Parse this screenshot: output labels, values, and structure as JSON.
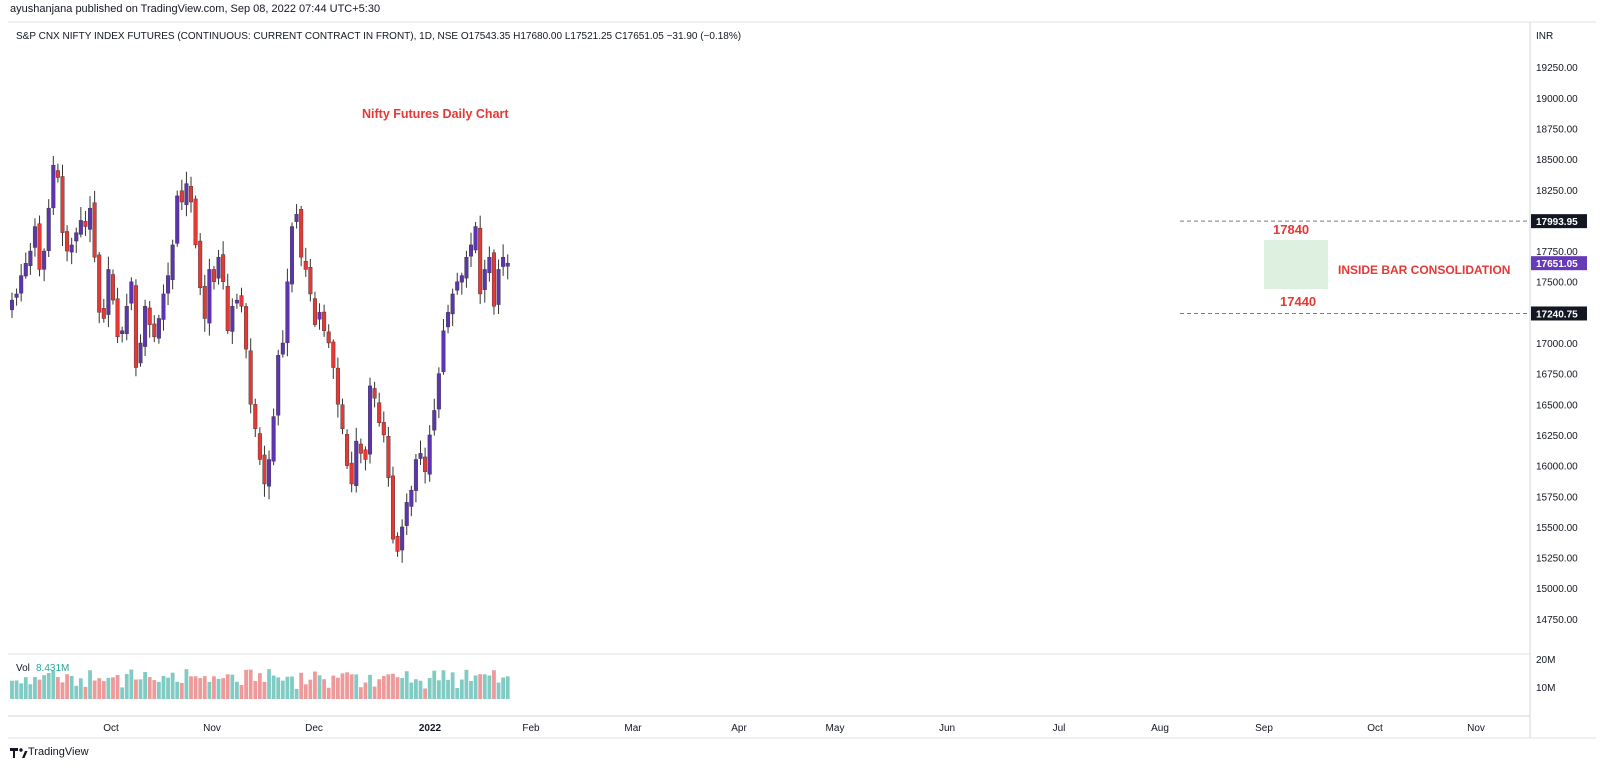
{
  "header": {
    "publisher": "ayushanjana published on TradingView.com, Sep 08, 2022 07:44 UTC+5:30",
    "symbol_line": "S&P CNX NIFTY INDEX FUTURES (CONTINUOUS: CURRENT CONTRACT IN FRONT), 1D, NSE  O17543.35  H17680.00  L17521.25  C17651.05  −31.90 (−0.18%)"
  },
  "footer": {
    "brand": "TradingView"
  },
  "volume": {
    "label": "Vol",
    "value": "8.431M"
  },
  "colors": {
    "up": "#5e35b1",
    "down": "#e53935",
    "vol_up": "#80cbc4",
    "vol_down": "#ef9a9a",
    "annotation": "#e53935",
    "box_fill": "#c8e6c9",
    "price_badge": "#673ab7"
  },
  "chart_data": {
    "type": "candlestick",
    "title": "Nifty Futures Daily Chart",
    "currency_label": "INR",
    "ylim": [
      14600,
      19500
    ],
    "y_ticks": [
      "14750.00",
      "15000.00",
      "15250.00",
      "15500.00",
      "15750.00",
      "16000.00",
      "16250.00",
      "16500.00",
      "16750.00",
      "17000.00",
      "17250.00",
      "17500.00",
      "17750.00",
      "18000.00",
      "18250.00",
      "18500.00",
      "18750.00",
      "19000.00",
      "19250.00"
    ],
    "x_ticks": [
      "Oct",
      "Nov",
      "Dec",
      "2022",
      "Feb",
      "Mar",
      "Apr",
      "May",
      "Jun",
      "Jul",
      "Aug",
      "Sep",
      "Oct",
      "Nov"
    ],
    "volume_ticks": [
      "20M",
      "10M"
    ],
    "price_badges": [
      {
        "label": "17993.95",
        "value": 17993.95,
        "style": "dark"
      },
      {
        "label": "17651.05",
        "value": 17651.05,
        "style": "purple"
      },
      {
        "label": "17240.75",
        "value": 17240.75,
        "style": "dark"
      }
    ],
    "levels": [
      17993.95,
      17240.75
    ],
    "annotations": [
      {
        "text": "17840",
        "value": 17840
      },
      {
        "text": "17440",
        "value": 17440
      },
      {
        "text": "INSIDE BAR CONSOLIDATION"
      }
    ],
    "consolidation_box": {
      "low": 17440,
      "high": 17840
    },
    "close_path": [
      17350,
      17400,
      17550,
      17650,
      17750,
      17950,
      17600,
      17750,
      18100,
      18450,
      18350,
      17900,
      17750,
      17800,
      17900,
      18000,
      17950,
      18100,
      17700,
      17250,
      17200,
      17600,
      17350,
      17050,
      17100,
      17300,
      17500,
      16800,
      17000,
      17300,
      17150,
      17050,
      17200,
      17400,
      17550,
      17800,
      18200,
      18150,
      18300,
      18150,
      17800,
      17450,
      17200,
      17600,
      17500,
      17700,
      17500,
      17100,
      17300,
      17350,
      17300,
      16950,
      16500,
      16300,
      16050,
      15850,
      16050,
      16400,
      16900,
      17000,
      17500,
      17950,
      18050,
      17700,
      17600,
      17400,
      17150,
      17250,
      17100,
      17000,
      16800,
      16500,
      16300,
      16000,
      15850,
      16200,
      16100,
      16050,
      16650,
      16550,
      16350,
      16250,
      15900,
      15400,
      15300,
      15500,
      15700,
      15800,
      16050,
      16100,
      15950,
      16250,
      16450,
      16750,
      17100,
      17250,
      17400,
      17500,
      17550,
      17700,
      17800,
      17950,
      17400,
      17600,
      17700,
      17300,
      17600,
      17700,
      17651
    ]
  }
}
